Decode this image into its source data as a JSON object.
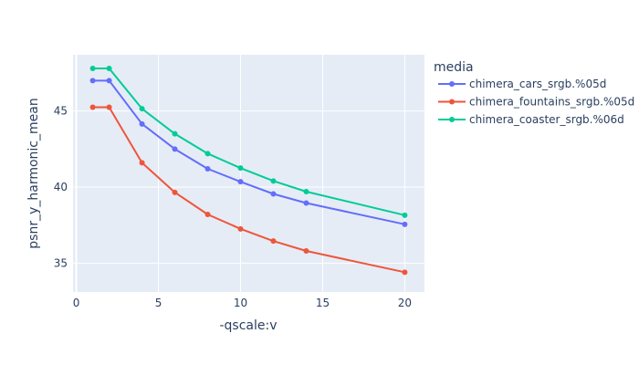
{
  "chart_data": {
    "type": "line",
    "title": "",
    "xlabel": "-qscale:v",
    "ylabel": "psnr_y_harmonic_mean",
    "xlim": [
      -0.2,
      21.2
    ],
    "ylim": [
      33.1,
      48.7
    ],
    "xticks": [
      0,
      5,
      10,
      15,
      20
    ],
    "yticks": [
      35,
      40,
      45
    ],
    "grid": true,
    "legend": {
      "title": "media",
      "position": "right"
    },
    "background_color": "#e5ecf6",
    "series": [
      {
        "name": "chimera_cars_srgb.%05d",
        "color": "#636efa",
        "x": [
          1,
          2,
          4,
          6,
          8,
          10,
          12,
          14,
          20
        ],
        "y": [
          47.0,
          47.0,
          44.15,
          42.5,
          41.2,
          40.35,
          39.55,
          38.95,
          37.55
        ]
      },
      {
        "name": "chimera_fountains_srgb.%05d",
        "color": "#ef553b",
        "x": [
          1,
          2,
          4,
          6,
          8,
          10,
          12,
          14,
          20
        ],
        "y": [
          45.25,
          45.25,
          41.6,
          39.65,
          38.2,
          37.25,
          36.45,
          35.8,
          34.4
        ]
      },
      {
        "name": "chimera_coaster_srgb.%06d",
        "color": "#00cc96",
        "x": [
          1,
          2,
          4,
          6,
          8,
          10,
          12,
          14,
          20
        ],
        "y": [
          47.8,
          47.8,
          45.15,
          43.5,
          42.2,
          41.25,
          40.4,
          39.7,
          38.15
        ]
      }
    ]
  }
}
